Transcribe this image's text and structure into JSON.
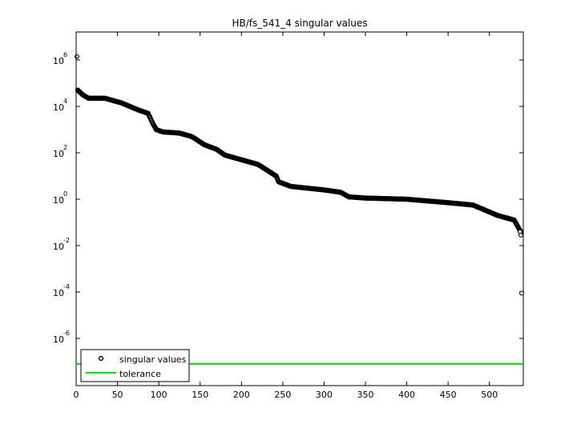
{
  "chart_data": {
    "type": "scatter",
    "title": "HB/fs_541_4 singular values",
    "xlabel": "",
    "ylabel": "",
    "xlim": [
      0,
      541
    ],
    "ylim_log10": [
      -8,
      7
    ],
    "y_scale": "log",
    "x_ticks": [
      0,
      50,
      100,
      150,
      200,
      250,
      300,
      350,
      400,
      450,
      500
    ],
    "y_tick_exponents": [
      -6,
      -4,
      -2,
      0,
      2,
      4,
      6
    ],
    "y_tick_base": "10",
    "grid": false,
    "legend_position": "bottom-left",
    "series": [
      {
        "name": "singular values",
        "marker": "circle-open",
        "color": "#000000",
        "profile_log10": [
          [
            1,
            6.15
          ],
          [
            2,
            4.7
          ],
          [
            8,
            4.5
          ],
          [
            15,
            4.35
          ],
          [
            35,
            4.35
          ],
          [
            55,
            4.15
          ],
          [
            75,
            3.85
          ],
          [
            87,
            3.7
          ],
          [
            93,
            3.25
          ],
          [
            97,
            3.0
          ],
          [
            105,
            2.9
          ],
          [
            125,
            2.85
          ],
          [
            140,
            2.7
          ],
          [
            155,
            2.35
          ],
          [
            170,
            2.15
          ],
          [
            180,
            1.9
          ],
          [
            200,
            1.7
          ],
          [
            220,
            1.5
          ],
          [
            242,
            1.0
          ],
          [
            245,
            0.75
          ],
          [
            260,
            0.55
          ],
          [
            300,
            0.4
          ],
          [
            320,
            0.3
          ],
          [
            330,
            0.1
          ],
          [
            350,
            0.05
          ],
          [
            400,
            0.0
          ],
          [
            450,
            -0.15
          ],
          [
            480,
            -0.25
          ],
          [
            490,
            -0.4
          ],
          [
            510,
            -0.7
          ],
          [
            530,
            -0.9
          ],
          [
            537,
            -1.35
          ],
          [
            538,
            -1.4
          ],
          [
            539,
            -1.55
          ],
          [
            540,
            -1.55
          ]
        ],
        "outliers_log10": [
          [
            539,
            -1.4
          ],
          [
            540,
            -1.55
          ],
          [
            541,
            -4.05
          ]
        ]
      },
      {
        "name": "tolerance",
        "type": "line",
        "color": "#00dd00",
        "value_log10": -7.1
      }
    ]
  }
}
